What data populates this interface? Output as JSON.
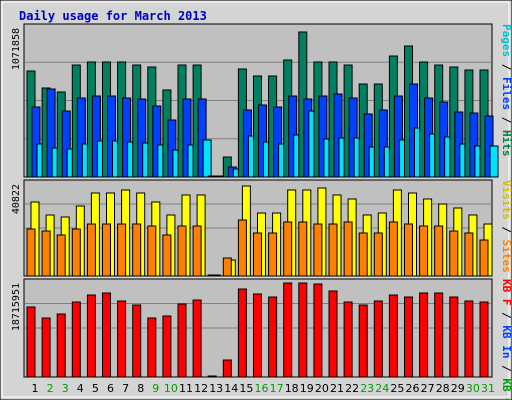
{
  "title": "Daily usage for March 2013",
  "right_labels": {
    "top": [
      {
        "text": "Pages",
        "color": "#00c0d0"
      },
      {
        "text": " / ",
        "color": "#000000"
      },
      {
        "text": "Files",
        "color": "#0040ff"
      },
      {
        "text": " / ",
        "color": "#000000"
      },
      {
        "text": "Hits",
        "color": "#008040"
      }
    ],
    "middle": [
      {
        "text": "Visits",
        "color": "#d0c000"
      },
      {
        "text": " / ",
        "color": "#000000"
      },
      {
        "text": "Sites",
        "color": "#ff8000"
      }
    ],
    "bottom": [
      {
        "text": "KB F",
        "color": "#ff0000"
      },
      {
        "text": " / ",
        "color": "#000000"
      },
      {
        "text": "KB In",
        "color": "#0040ff"
      },
      {
        "text": " / ",
        "color": "#000000"
      },
      {
        "text": "KB Out",
        "color": "#00a000"
      }
    ]
  },
  "colors": {
    "hits": "#008060",
    "files": "#0040ff",
    "pages": "#00e0ff",
    "visits": "#ffff00",
    "sites": "#ff8000",
    "kbf": "#ff0000",
    "plot_bg": "#c0c0c0",
    "frame": "#000000",
    "title": "#0000c0",
    "weekend_day": "#00a000",
    "weekday": "#000000"
  },
  "chart_data": [
    {
      "type": "bar",
      "name": "usage",
      "max_label": "1071858",
      "ylim": [
        0,
        1071858
      ],
      "x": [
        1,
        2,
        3,
        4,
        5,
        6,
        7,
        8,
        9,
        10,
        11,
        12,
        13,
        14,
        15,
        16,
        17,
        18,
        19,
        20,
        21,
        22,
        23,
        24,
        25,
        26,
        27,
        28,
        29,
        30,
        31
      ],
      "series": [
        {
          "name": "Hits",
          "values": [
            762000,
            640000,
            610000,
            805000,
            830000,
            830000,
            830000,
            805000,
            790000,
            625000,
            805000,
            805000,
            0,
            145000,
            780000,
            725000,
            725000,
            840000,
            1040000,
            830000,
            830000,
            805000,
            670000,
            670000,
            870000,
            945000,
            830000,
            805000,
            790000,
            770000,
            770000
          ]
        },
        {
          "name": "Files",
          "values": [
            505000,
            630000,
            475000,
            570000,
            580000,
            580000,
            570000,
            560000,
            510000,
            410000,
            560000,
            560000,
            0,
            70000,
            480000,
            515000,
            500000,
            580000,
            560000,
            580000,
            600000,
            570000,
            450000,
            480000,
            580000,
            670000,
            570000,
            540000,
            470000,
            460000,
            440000
          ]
        },
        {
          "name": "Pages",
          "values": [
            235000,
            210000,
            205000,
            235000,
            260000,
            260000,
            250000,
            245000,
            230000,
            195000,
            230000,
            265000,
            0,
            55000,
            295000,
            250000,
            240000,
            300000,
            475000,
            275000,
            280000,
            280000,
            215000,
            215000,
            265000,
            350000,
            310000,
            285000,
            235000,
            220000,
            220000
          ]
        }
      ]
    },
    {
      "type": "bar",
      "name": "visits",
      "max_label": "40822",
      "ylim": [
        0,
        40822
      ],
      "x": [
        1,
        2,
        3,
        4,
        5,
        6,
        7,
        8,
        9,
        10,
        11,
        12,
        13,
        14,
        15,
        16,
        17,
        18,
        19,
        20,
        21,
        22,
        23,
        24,
        25,
        26,
        27,
        28,
        29,
        30,
        31
      ],
      "series": [
        {
          "name": "Visits",
          "values": [
            33000,
            27000,
            26000,
            31000,
            37000,
            37000,
            38000,
            37000,
            33000,
            27000,
            36000,
            36000,
            0,
            7000,
            40000,
            28000,
            28000,
            38000,
            38000,
            39000,
            36000,
            34000,
            27000,
            28000,
            38000,
            37000,
            34000,
            32000,
            30000,
            27000,
            23000
          ]
        },
        {
          "name": "Sites",
          "values": [
            21000,
            20000,
            18000,
            21000,
            23000,
            23000,
            23000,
            23000,
            22000,
            18000,
            22000,
            22000,
            0,
            8000,
            25000,
            19000,
            19000,
            24000,
            24000,
            23000,
            23000,
            24000,
            19000,
            19000,
            24000,
            23000,
            22000,
            22000,
            20000,
            19000,
            16000
          ]
        }
      ]
    },
    {
      "type": "bar",
      "name": "kbytes",
      "max_label": "18715951",
      "ylim": [
        0,
        18715951
      ],
      "x": [
        1,
        2,
        3,
        4,
        5,
        6,
        7,
        8,
        9,
        10,
        11,
        12,
        13,
        14,
        15,
        16,
        17,
        18,
        19,
        20,
        21,
        22,
        23,
        24,
        25,
        26,
        27,
        28,
        29,
        30,
        31
      ],
      "series": [
        {
          "name": "KB F",
          "values": [
            13900000,
            11800000,
            12600000,
            14900000,
            16300000,
            16800000,
            15200000,
            14300000,
            11800000,
            12100000,
            14600000,
            15400000,
            0,
            3300000,
            17500000,
            16500000,
            16000000,
            18700000,
            18700000,
            18500000,
            17200000,
            15000000,
            14300000,
            15200000,
            16300000,
            16000000,
            16800000,
            16800000,
            16000000,
            15200000,
            14900000
          ]
        }
      ]
    }
  ]
}
